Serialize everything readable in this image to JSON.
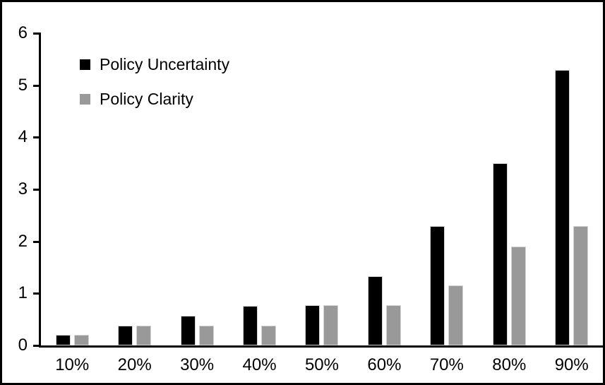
{
  "chart_data": {
    "type": "bar",
    "title": "",
    "xlabel": "",
    "ylabel": "",
    "categories": [
      "10%",
      "20%",
      "30%",
      "40%",
      "50%",
      "60%",
      "70%",
      "80%",
      "90%"
    ],
    "series": [
      {
        "name": "Policy Uncertainty",
        "color": "#000000",
        "values": [
          0.2,
          0.38,
          0.57,
          0.76,
          0.78,
          1.33,
          2.3,
          3.5,
          5.3
        ]
      },
      {
        "name": "Policy Clarity",
        "color": "#999999",
        "values": [
          0.2,
          0.38,
          0.38,
          0.38,
          0.77,
          0.77,
          1.15,
          1.9,
          2.3
        ]
      }
    ],
    "ylim": [
      0,
      6
    ],
    "y_ticks": [
      0,
      1,
      2,
      3,
      4,
      5,
      6
    ],
    "grid": false,
    "legend_position": "top-left",
    "frame_color": "#000000",
    "background_color": "#ffffff"
  }
}
